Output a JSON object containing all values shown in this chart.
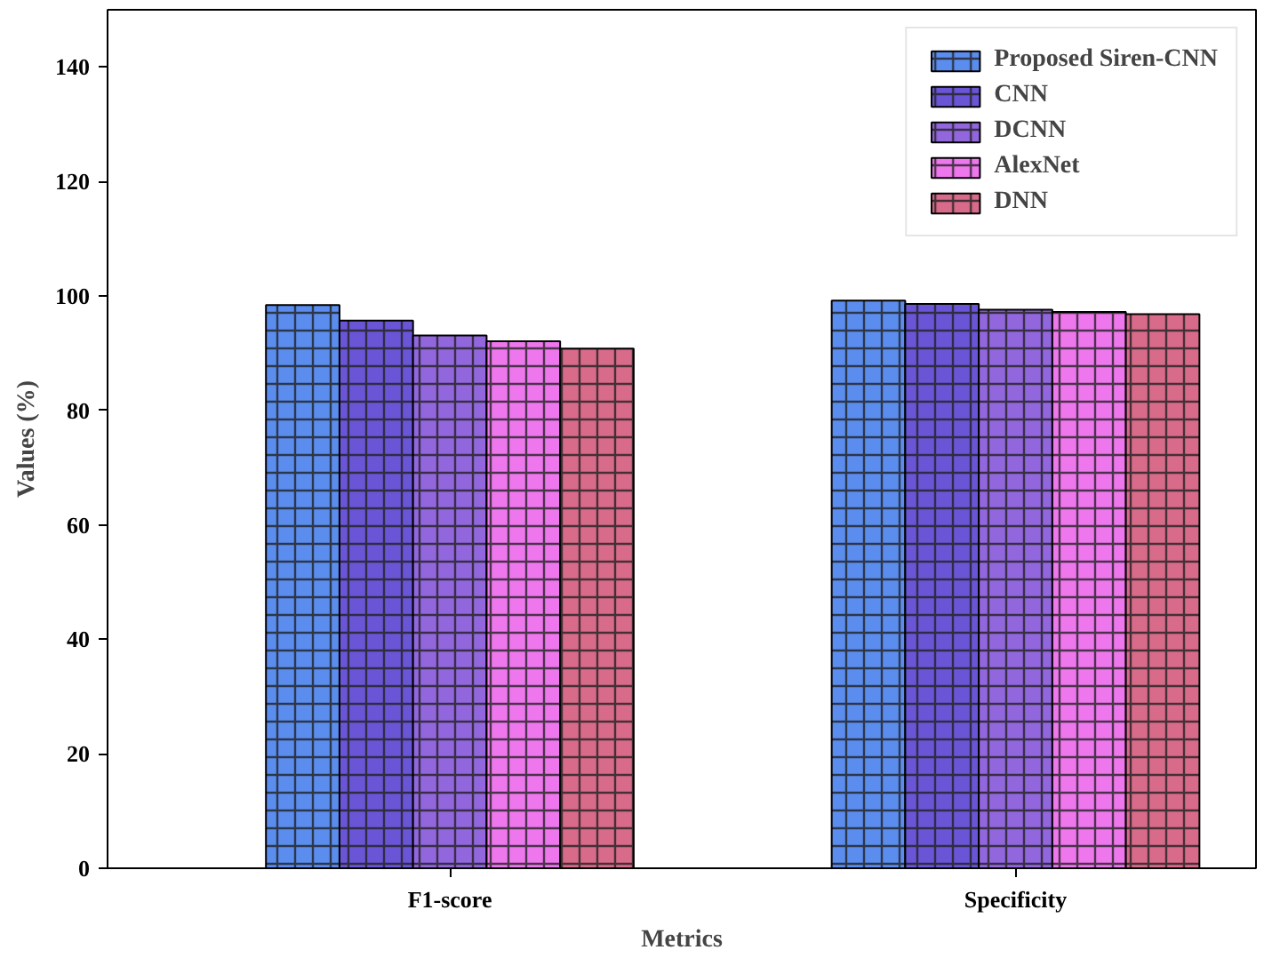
{
  "chart_data": {
    "type": "bar",
    "xlabel": "Metrics",
    "ylabel": "Values (%)",
    "categories": [
      "F1-score",
      "Specificity"
    ],
    "series": [
      {
        "name": "Proposed Siren-CNN",
        "color": "#5b8def",
        "values": [
          98.4,
          99.2
        ]
      },
      {
        "name": "CNN",
        "color": "#6a55d6",
        "values": [
          95.7,
          98.6
        ]
      },
      {
        "name": "DCNN",
        "color": "#9266dd",
        "values": [
          93.1,
          97.6
        ]
      },
      {
        "name": "AlexNet",
        "color": "#ee77ee",
        "values": [
          92.1,
          97.2
        ]
      },
      {
        "name": "DNN",
        "color": "#d86a8a",
        "values": [
          90.8,
          96.8
        ]
      }
    ],
    "ylim": [
      0,
      150
    ],
    "yticks": [
      0,
      20,
      40,
      60,
      80,
      100,
      120,
      140
    ],
    "grid": false,
    "legend": "top right"
  }
}
